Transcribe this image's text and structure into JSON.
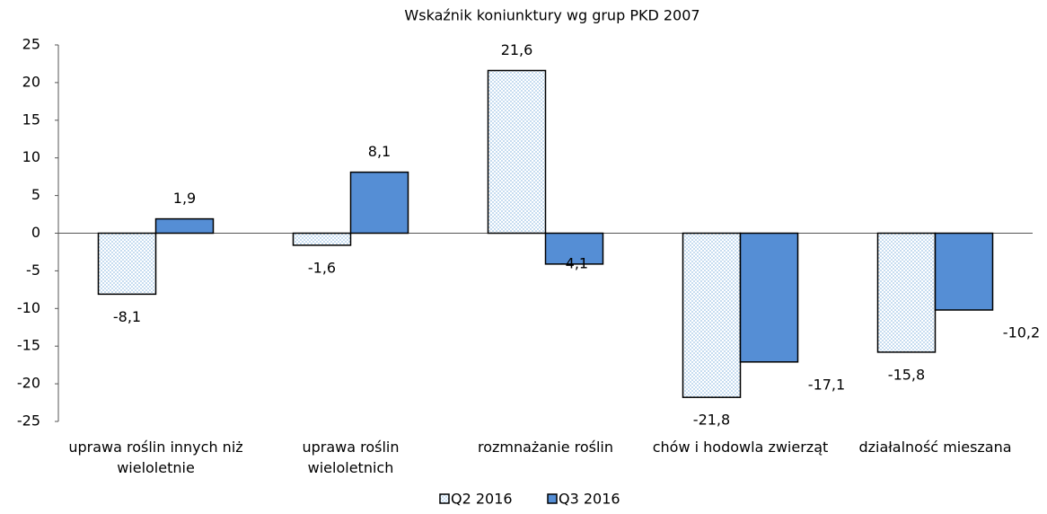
{
  "chart_data": {
    "type": "bar",
    "title": "Wskaźnik koniunktury wg grup PKD 2007",
    "categories": [
      "uprawa roślin innych niż wieloletnie",
      "uprawa roślin wieloletnich",
      "rozmnażanie roślin",
      "chów i hodowla zwierząt",
      "działalność mieszana"
    ],
    "series": [
      {
        "name": "Q2 2016",
        "color": "#9dc3e6",
        "pattern": "dotted",
        "values": [
          -8.1,
          -1.6,
          21.6,
          -21.8,
          -15.8
        ],
        "value_labels": [
          "-8,1",
          "-1,6",
          "21,6",
          "-21,8",
          "-15,8"
        ]
      },
      {
        "name": "Q3 2016",
        "color": "#558ed5",
        "values": [
          1.9,
          8.1,
          -4.1,
          -17.1,
          -10.2
        ],
        "value_labels": [
          "1,9",
          "8,1",
          "-4,1",
          "-17,1",
          "-10,2"
        ]
      }
    ],
    "ylim": [
      -25,
      25
    ],
    "yticks": [
      -25,
      -20,
      -15,
      -10,
      -5,
      0,
      5,
      10,
      15,
      20,
      25
    ],
    "legend": "bottom"
  }
}
